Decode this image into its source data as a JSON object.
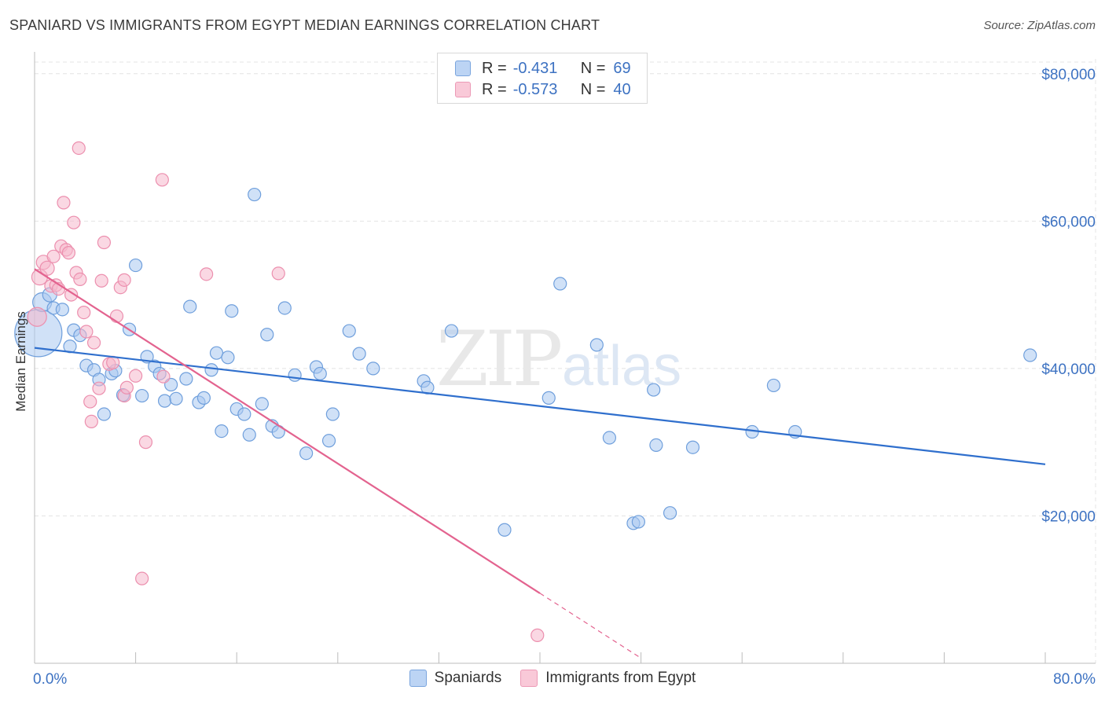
{
  "title": "SPANIARD VS IMMIGRANTS FROM EGYPT MEDIAN EARNINGS CORRELATION CHART",
  "source": "Source: ZipAtlas.com",
  "watermark": {
    "zip": "ZIP",
    "atlas": "atlas"
  },
  "legend": {
    "series": [
      {
        "r_label": "R =",
        "r_value": "-0.431",
        "n_label": "N =",
        "n_value": "69"
      },
      {
        "r_label": "R =",
        "r_value": "-0.573",
        "n_label": "N =",
        "n_value": "40"
      }
    ]
  },
  "colors": {
    "blue_fill": "#a9c8f0",
    "blue_stroke": "#6f9fdc",
    "blue_line": "#2f6fcd",
    "pink_fill": "#f6b8cc",
    "pink_stroke": "#ec8fae",
    "pink_line": "#e3638f",
    "grid": "#e4e4e4",
    "tick_text": "#3d72c2"
  },
  "chart_data": {
    "type": "scatter",
    "title": "SPANIARD VS IMMIGRANTS FROM EGYPT MEDIAN EARNINGS CORRELATION CHART",
    "xlabel": "",
    "ylabel": "Median Earnings",
    "xlim": [
      0,
      80
    ],
    "ylim": [
      0,
      82000
    ],
    "x_tick_labels": [
      "0.0%",
      "80.0%"
    ],
    "y_ticks": [
      20000,
      40000,
      60000,
      80000
    ],
    "y_tick_labels": [
      "$20,000",
      "$40,000",
      "$60,000",
      "$80,000"
    ],
    "grid": true,
    "legend_position": "bottom",
    "series": [
      {
        "name": "Spaniards",
        "r": -0.431,
        "n": 69,
        "trend": {
          "x": [
            0,
            80
          ],
          "y": [
            42800,
            27000
          ]
        },
        "points": [
          {
            "x": 0.3,
            "y": 44800,
            "s": 30
          },
          {
            "x": 0.6,
            "y": 49000,
            "s": 12
          },
          {
            "x": 1.2,
            "y": 50000,
            "s": 9
          },
          {
            "x": 1.5,
            "y": 48200,
            "s": 8
          },
          {
            "x": 2.2,
            "y": 48000,
            "s": 8
          },
          {
            "x": 2.8,
            "y": 43000,
            "s": 8
          },
          {
            "x": 3.1,
            "y": 45200,
            "s": 8
          },
          {
            "x": 3.6,
            "y": 44500,
            "s": 8
          },
          {
            "x": 4.1,
            "y": 40400,
            "s": 8
          },
          {
            "x": 4.7,
            "y": 39800,
            "s": 8
          },
          {
            "x": 5.1,
            "y": 38500,
            "s": 8
          },
          {
            "x": 5.5,
            "y": 33800,
            "s": 8
          },
          {
            "x": 6.1,
            "y": 39300,
            "s": 8
          },
          {
            "x": 6.4,
            "y": 39700,
            "s": 8
          },
          {
            "x": 7.0,
            "y": 36400,
            "s": 8
          },
          {
            "x": 7.5,
            "y": 45300,
            "s": 8
          },
          {
            "x": 8.0,
            "y": 54000,
            "s": 8
          },
          {
            "x": 8.5,
            "y": 36300,
            "s": 8
          },
          {
            "x": 8.9,
            "y": 41600,
            "s": 8
          },
          {
            "x": 9.5,
            "y": 40300,
            "s": 8
          },
          {
            "x": 9.9,
            "y": 39300,
            "s": 8
          },
          {
            "x": 10.3,
            "y": 35600,
            "s": 8
          },
          {
            "x": 10.8,
            "y": 37800,
            "s": 8
          },
          {
            "x": 11.2,
            "y": 35900,
            "s": 8
          },
          {
            "x": 12.0,
            "y": 38600,
            "s": 8
          },
          {
            "x": 12.3,
            "y": 48400,
            "s": 8
          },
          {
            "x": 13.0,
            "y": 35400,
            "s": 8
          },
          {
            "x": 13.4,
            "y": 36000,
            "s": 8
          },
          {
            "x": 14.0,
            "y": 39800,
            "s": 8
          },
          {
            "x": 14.4,
            "y": 42100,
            "s": 8
          },
          {
            "x": 14.8,
            "y": 31500,
            "s": 8
          },
          {
            "x": 15.3,
            "y": 41500,
            "s": 8
          },
          {
            "x": 15.6,
            "y": 47800,
            "s": 8
          },
          {
            "x": 16.0,
            "y": 34500,
            "s": 8
          },
          {
            "x": 16.6,
            "y": 33800,
            "s": 8
          },
          {
            "x": 17.0,
            "y": 31000,
            "s": 8
          },
          {
            "x": 17.4,
            "y": 63600,
            "s": 8
          },
          {
            "x": 18.0,
            "y": 35200,
            "s": 8
          },
          {
            "x": 18.4,
            "y": 44600,
            "s": 8
          },
          {
            "x": 18.8,
            "y": 32200,
            "s": 8
          },
          {
            "x": 19.3,
            "y": 31400,
            "s": 8
          },
          {
            "x": 19.8,
            "y": 48200,
            "s": 8
          },
          {
            "x": 20.6,
            "y": 39100,
            "s": 8
          },
          {
            "x": 21.5,
            "y": 28500,
            "s": 8
          },
          {
            "x": 22.3,
            "y": 40200,
            "s": 8
          },
          {
            "x": 22.6,
            "y": 39300,
            "s": 8
          },
          {
            "x": 23.3,
            "y": 30200,
            "s": 8
          },
          {
            "x": 23.6,
            "y": 33800,
            "s": 8
          },
          {
            "x": 24.9,
            "y": 45100,
            "s": 8
          },
          {
            "x": 25.7,
            "y": 42000,
            "s": 8
          },
          {
            "x": 26.8,
            "y": 40000,
            "s": 8
          },
          {
            "x": 30.8,
            "y": 38300,
            "s": 8
          },
          {
            "x": 31.1,
            "y": 37400,
            "s": 8
          },
          {
            "x": 33.0,
            "y": 45100,
            "s": 8
          },
          {
            "x": 37.2,
            "y": 18100,
            "s": 8
          },
          {
            "x": 40.7,
            "y": 36000,
            "s": 8
          },
          {
            "x": 41.6,
            "y": 51500,
            "s": 8
          },
          {
            "x": 44.5,
            "y": 43200,
            "s": 8
          },
          {
            "x": 45.5,
            "y": 30600,
            "s": 8
          },
          {
            "x": 47.4,
            "y": 19000,
            "s": 8
          },
          {
            "x": 47.8,
            "y": 19200,
            "s": 8
          },
          {
            "x": 49.0,
            "y": 37100,
            "s": 8
          },
          {
            "x": 49.2,
            "y": 29600,
            "s": 8
          },
          {
            "x": 50.3,
            "y": 20400,
            "s": 8
          },
          {
            "x": 52.1,
            "y": 29300,
            "s": 8
          },
          {
            "x": 56.8,
            "y": 31400,
            "s": 8
          },
          {
            "x": 58.5,
            "y": 37700,
            "s": 8
          },
          {
            "x": 60.2,
            "y": 31400,
            "s": 8
          },
          {
            "x": 78.8,
            "y": 41800,
            "s": 8
          }
        ]
      },
      {
        "name": "Immigrants from Egypt",
        "r": -0.573,
        "n": 40,
        "trend": {
          "x": [
            0,
            40
          ],
          "y": [
            53500,
            9500
          ]
        },
        "trend_dashed": {
          "x": [
            40,
            48
          ],
          "y": [
            9500,
            700
          ]
        },
        "points": [
          {
            "x": 0.2,
            "y": 47000,
            "s": 12
          },
          {
            "x": 0.4,
            "y": 52400,
            "s": 10
          },
          {
            "x": 0.7,
            "y": 54400,
            "s": 9
          },
          {
            "x": 1.0,
            "y": 53600,
            "s": 9
          },
          {
            "x": 1.3,
            "y": 51200,
            "s": 8
          },
          {
            "x": 1.5,
            "y": 55200,
            "s": 8
          },
          {
            "x": 1.7,
            "y": 51300,
            "s": 8
          },
          {
            "x": 1.9,
            "y": 50800,
            "s": 8
          },
          {
            "x": 2.1,
            "y": 56600,
            "s": 8
          },
          {
            "x": 2.3,
            "y": 62500,
            "s": 8
          },
          {
            "x": 2.5,
            "y": 56100,
            "s": 8
          },
          {
            "x": 2.7,
            "y": 55700,
            "s": 8
          },
          {
            "x": 2.9,
            "y": 50000,
            "s": 8
          },
          {
            "x": 3.1,
            "y": 59800,
            "s": 8
          },
          {
            "x": 3.3,
            "y": 53000,
            "s": 8
          },
          {
            "x": 3.5,
            "y": 69900,
            "s": 8
          },
          {
            "x": 3.6,
            "y": 52100,
            "s": 8
          },
          {
            "x": 3.9,
            "y": 47600,
            "s": 8
          },
          {
            "x": 4.1,
            "y": 45000,
            "s": 8
          },
          {
            "x": 4.4,
            "y": 35500,
            "s": 8
          },
          {
            "x": 4.7,
            "y": 43500,
            "s": 8
          },
          {
            "x": 4.5,
            "y": 32800,
            "s": 8
          },
          {
            "x": 5.1,
            "y": 37300,
            "s": 8
          },
          {
            "x": 5.3,
            "y": 51900,
            "s": 8
          },
          {
            "x": 5.5,
            "y": 57100,
            "s": 8
          },
          {
            "x": 5.9,
            "y": 40600,
            "s": 8
          },
          {
            "x": 6.2,
            "y": 40800,
            "s": 8
          },
          {
            "x": 6.5,
            "y": 47100,
            "s": 8
          },
          {
            "x": 6.8,
            "y": 51000,
            "s": 8
          },
          {
            "x": 7.1,
            "y": 52000,
            "s": 8
          },
          {
            "x": 7.1,
            "y": 36300,
            "s": 8
          },
          {
            "x": 7.3,
            "y": 37400,
            "s": 8
          },
          {
            "x": 8.0,
            "y": 39000,
            "s": 8
          },
          {
            "x": 8.5,
            "y": 11500,
            "s": 8
          },
          {
            "x": 8.8,
            "y": 30000,
            "s": 8
          },
          {
            "x": 10.1,
            "y": 65600,
            "s": 8
          },
          {
            "x": 10.2,
            "y": 38900,
            "s": 8
          },
          {
            "x": 13.6,
            "y": 52800,
            "s": 8
          },
          {
            "x": 19.3,
            "y": 52900,
            "s": 8
          },
          {
            "x": 39.8,
            "y": 3800,
            "s": 8
          }
        ]
      }
    ]
  }
}
